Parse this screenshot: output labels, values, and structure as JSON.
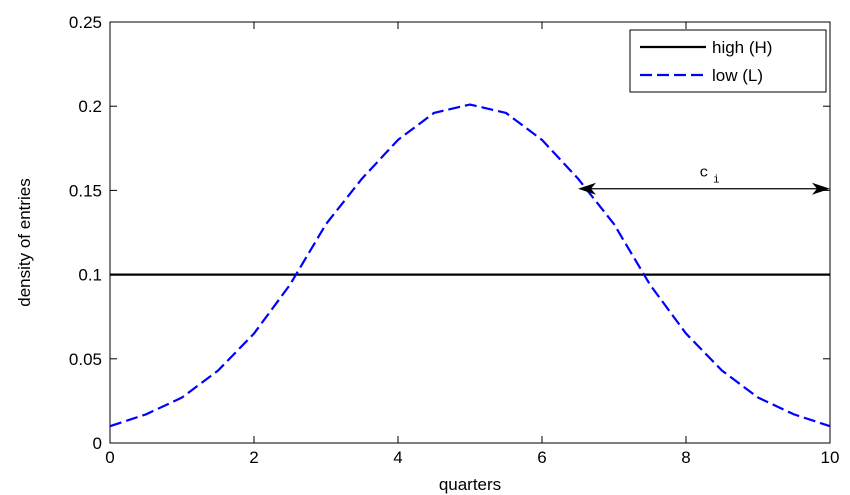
{
  "chart_data": {
    "type": "line",
    "xlabel": "quarters",
    "ylabel": "density of entries",
    "xlim": [
      0,
      10
    ],
    "ylim": [
      0,
      0.25
    ],
    "xticks": [
      "0",
      "2",
      "4",
      "6",
      "8",
      "10"
    ],
    "yticks": [
      "0",
      "0.05",
      "0.1",
      "0.15",
      "0.2",
      "0.25"
    ],
    "grid": false,
    "legend_position": "top-right",
    "series": [
      {
        "name": "high (H)",
        "color": "#000000",
        "style": "solid",
        "x": [
          0,
          10
        ],
        "y": [
          0.1,
          0.1
        ]
      },
      {
        "name": "low (L)",
        "color": "#0000ff",
        "style": "dashed",
        "x": [
          0,
          0.5,
          1,
          1.5,
          2,
          2.5,
          3,
          3.5,
          4,
          4.5,
          5,
          5.5,
          6,
          6.5,
          7,
          7.5,
          8,
          8.5,
          9,
          9.5,
          10
        ],
        "y": [
          0.01,
          0.017,
          0.027,
          0.043,
          0.065,
          0.094,
          0.13,
          0.157,
          0.18,
          0.196,
          0.201,
          0.196,
          0.18,
          0.157,
          0.13,
          0.094,
          0.065,
          0.043,
          0.027,
          0.017,
          0.01
        ]
      }
    ],
    "annotation": {
      "text": "c",
      "subscript": "i",
      "x_start": 6.5,
      "x_end": 10,
      "y": 0.151
    }
  }
}
